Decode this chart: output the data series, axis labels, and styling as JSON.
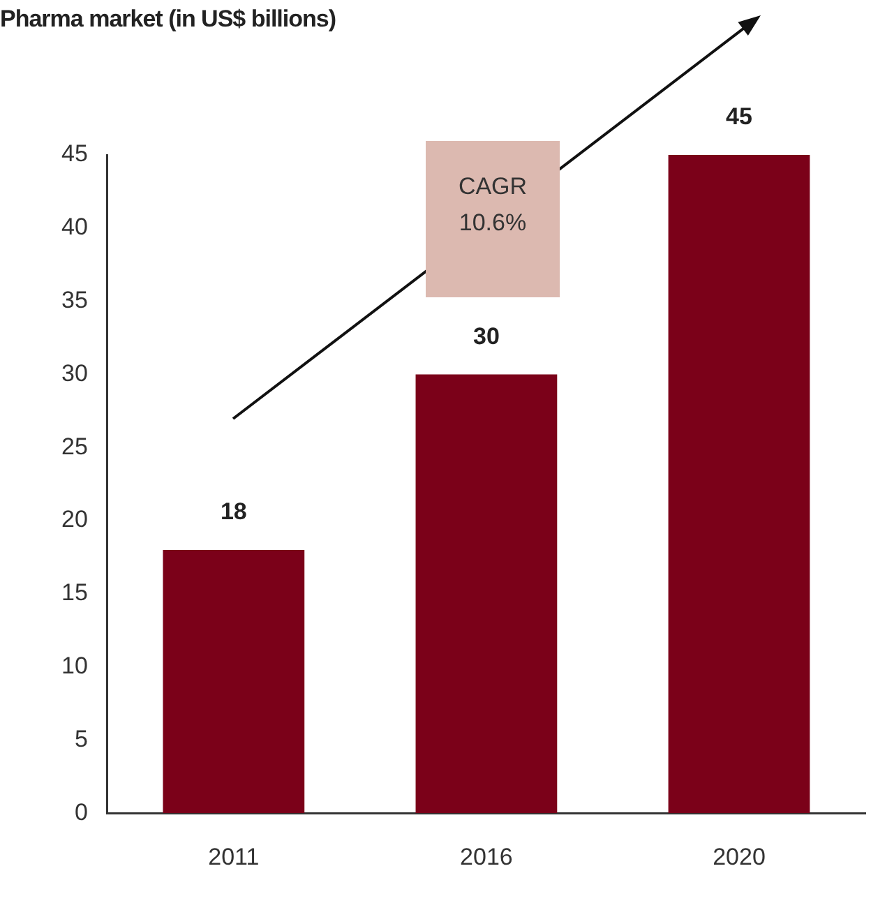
{
  "chart_data": {
    "type": "bar",
    "title": "Pharma market (in US$ billions)",
    "categories": [
      "2011",
      "2016",
      "2020"
    ],
    "values": [
      18,
      30,
      45
    ],
    "color": "#7b0119",
    "ylim": [
      0,
      45
    ],
    "yticks": [
      0,
      5,
      10,
      15,
      20,
      25,
      30,
      35,
      40,
      45
    ],
    "grid": false,
    "legend": false,
    "data_labels": true,
    "annotations": [
      "CAGR\n10.6%"
    ]
  }
}
